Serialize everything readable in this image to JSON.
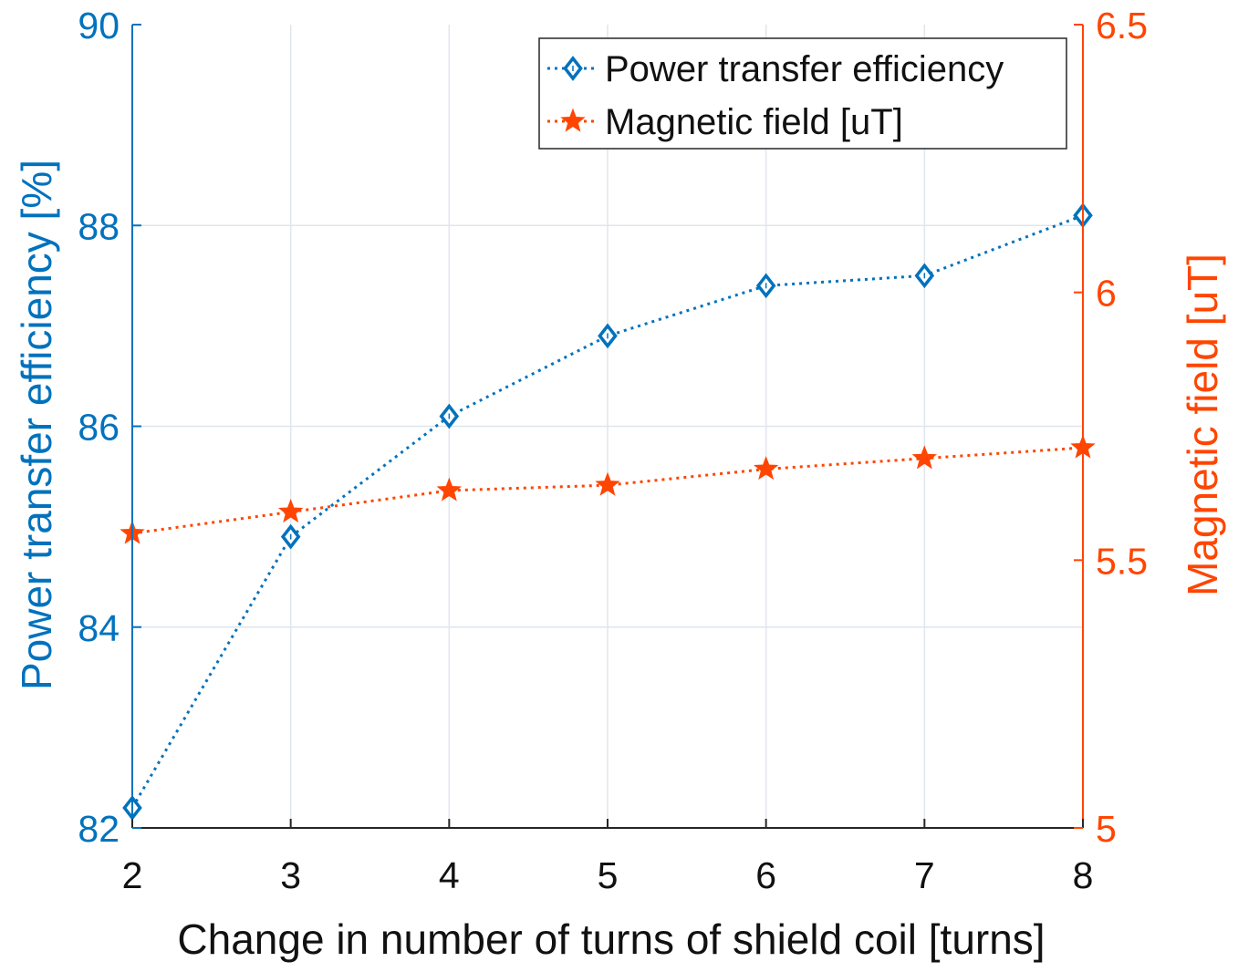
{
  "chart_data": {
    "type": "line",
    "title": "",
    "xlabel": "Change in number of turns of shield coil [turns]",
    "ylabel_left": "Power transfer efficiency [%]",
    "ylabel_right": "Magnetic field [uT]",
    "x": [
      2,
      3,
      4,
      5,
      6,
      7,
      8
    ],
    "x_tick_labels": [
      "2",
      "3",
      "4",
      "5",
      "6",
      "7",
      "8"
    ],
    "xlim": [
      2,
      8
    ],
    "ylim_left": [
      82,
      90
    ],
    "y_left_ticks": [
      82,
      84,
      86,
      88,
      90
    ],
    "y_left_tick_labels": [
      "82",
      "84",
      "86",
      "88",
      "90"
    ],
    "ylim_right": [
      5,
      6.5
    ],
    "y_right_ticks": [
      5,
      5.5,
      6,
      6.5
    ],
    "y_right_tick_labels": [
      "5",
      "5.5",
      "6",
      "6.5"
    ],
    "grid": true,
    "legend_position": "top-right",
    "series": [
      {
        "name": "Power transfer efficiency",
        "axis": "left",
        "marker": "diamond",
        "line_style": "dotted",
        "color": "#0072BD",
        "values": [
          82.2,
          84.9,
          86.1,
          86.9,
          87.4,
          87.5,
          88.1
        ]
      },
      {
        "name": "Magnetic field [uT]",
        "axis": "right",
        "marker": "star",
        "line_style": "dotted",
        "color": "#FF4500",
        "values": [
          5.55,
          5.59,
          5.63,
          5.64,
          5.67,
          5.69,
          5.71
        ]
      }
    ]
  },
  "colors": {
    "left_axis": "#0072BD",
    "right_axis": "#FF4500",
    "bottom_axis": "#262626",
    "grid": "#dfe6ee"
  }
}
